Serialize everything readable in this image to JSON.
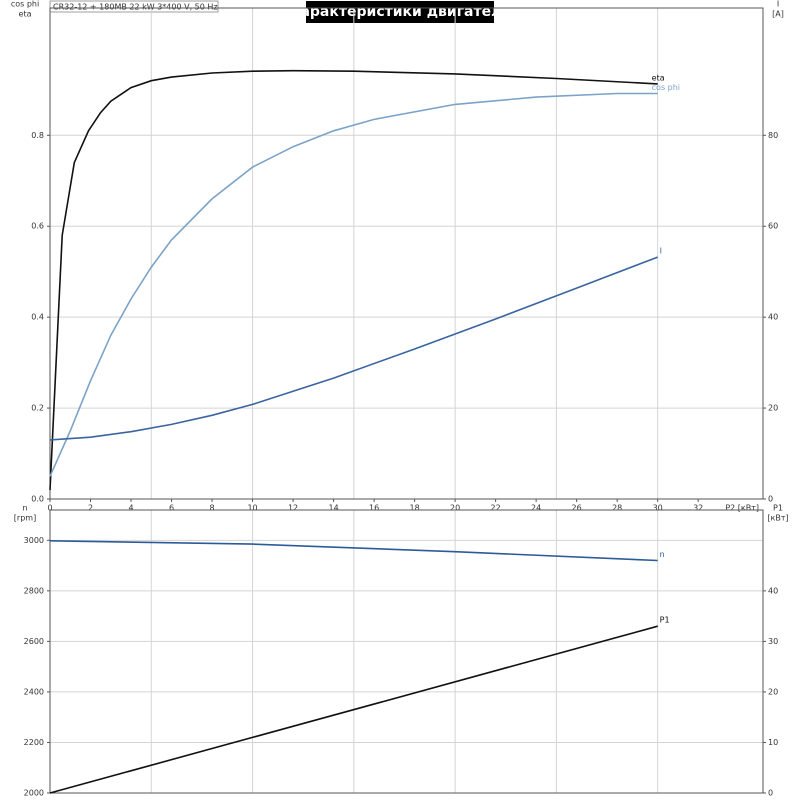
{
  "chart_data": [
    {
      "type": "line",
      "title": "Характеристики двигателя",
      "subtitle": "CR32-12 + 180MB   22 kW   3*400 V, 50 Hz",
      "ylabel": [
        "cos phi",
        "eta"
      ],
      "y2label": [
        "I",
        "[A]"
      ],
      "xlabel": "P2 [кВт]",
      "xlim": [
        0,
        35.2
      ],
      "xticks": [
        0,
        2,
        4,
        6,
        8,
        10,
        12,
        14,
        16,
        18,
        20,
        22,
        24,
        26,
        28,
        30,
        32
      ],
      "xgrid": [
        5,
        10,
        15,
        20,
        25,
        30
      ],
      "ylim": [
        0,
        1.08
      ],
      "yticks": [
        {
          "value": 0,
          "label": "0.0"
        },
        0.2,
        0.4,
        0.6,
        0.8
      ],
      "y2lim": [
        0,
        108
      ],
      "y2ticks": [
        0,
        20,
        40,
        60,
        80
      ],
      "grid": true,
      "series": [
        {
          "name": "eta",
          "color": "#111111",
          "x": [
            0,
            0.3,
            0.6,
            1.2,
            1.9,
            2.5,
            3,
            4,
            5,
            6,
            8,
            10,
            12,
            15,
            20,
            25,
            30
          ],
          "values": [
            0.02,
            0.3,
            0.58,
            0.74,
            0.81,
            0.85,
            0.875,
            0.905,
            0.92,
            0.928,
            0.937,
            0.941,
            0.942,
            0.941,
            0.935,
            0.925,
            0.913
          ]
        },
        {
          "name": "cos phi",
          "color": "#7ba3c8",
          "x": [
            0,
            1,
            2,
            3,
            4,
            5,
            6,
            8,
            10,
            12,
            14,
            16,
            20,
            24,
            28,
            30
          ],
          "values": [
            0.05,
            0.15,
            0.26,
            0.36,
            0.44,
            0.51,
            0.57,
            0.66,
            0.73,
            0.775,
            0.81,
            0.835,
            0.868,
            0.884,
            0.892,
            0.892
          ]
        },
        {
          "name": "I",
          "color": "#3a64a0",
          "axis": "y2",
          "x": [
            0,
            2,
            4,
            6,
            8,
            10,
            14,
            18,
            22,
            26,
            30
          ],
          "values": [
            13,
            13.6,
            14.8,
            16.4,
            18.4,
            20.8,
            26.6,
            33,
            39.6,
            46.4,
            53.2
          ]
        }
      ]
    },
    {
      "type": "line",
      "ylabel": [
        "n",
        "[rpm]"
      ],
      "y2label": [
        "P1",
        "[кВт]"
      ],
      "xlim": [
        0,
        35.2
      ],
      "xgrid": [
        5,
        10,
        15,
        20,
        25,
        30
      ],
      "ylim": [
        2000,
        3120
      ],
      "yticks": [
        2000,
        2200,
        2400,
        2600,
        2800,
        3000
      ],
      "y2lim": [
        0,
        56
      ],
      "y2ticks": [
        0,
        10,
        20,
        30,
        40
      ],
      "grid": true,
      "series": [
        {
          "name": "n",
          "color": "#2d5a99",
          "x": [
            0,
            10,
            20,
            30
          ],
          "values": [
            2998,
            2985,
            2955,
            2920
          ]
        },
        {
          "name": "P1",
          "color": "#111111",
          "axis": "y2",
          "x": [
            0,
            30
          ],
          "values": [
            0,
            33
          ]
        }
      ]
    }
  ]
}
